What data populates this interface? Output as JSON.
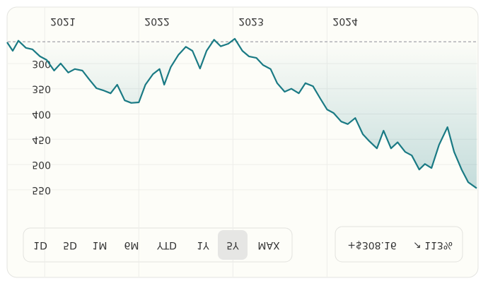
{
  "chart_data": {
    "type": "line",
    "xlim": [
      2020.6,
      2025.59
    ],
    "xticks": [
      2021,
      2022,
      2023,
      2024
    ],
    "ylim": [
      240,
      560
    ],
    "yticks": [
      300,
      350,
      400,
      450,
      500,
      550
    ],
    "grid": true,
    "reference_value": 257,
    "x": [
      2020.6,
      2020.66,
      2020.72,
      2020.8,
      2020.87,
      2020.95,
      2021.02,
      2021.1,
      2021.17,
      2021.25,
      2021.32,
      2021.4,
      2021.47,
      2021.55,
      2021.62,
      2021.7,
      2021.77,
      2021.85,
      2021.92,
      2022.0,
      2022.07,
      2022.15,
      2022.22,
      2022.27,
      2022.34,
      2022.42,
      2022.5,
      2022.57,
      2022.65,
      2022.72,
      2022.8,
      2022.87,
      2022.95,
      2023.02,
      2023.1,
      2023.17,
      2023.25,
      2023.32,
      2023.4,
      2023.47,
      2023.55,
      2023.62,
      2023.7,
      2023.77,
      2023.85,
      2023.93,
      2024.0,
      2024.07,
      2024.15,
      2024.22,
      2024.3,
      2024.38,
      2024.45,
      2024.53,
      2024.6,
      2024.68,
      2024.75,
      2024.83,
      2024.9,
      2024.98,
      2025.04,
      2025.11,
      2025.19,
      2025.28,
      2025.35,
      2025.43,
      2025.5,
      2025.59
    ],
    "series": [
      {
        "color": "#1a7a84",
        "values": [
          258,
          275,
          255,
          269,
          272,
          286,
          293,
          314,
          300,
          318,
          311,
          314,
          331,
          349,
          353,
          359,
          342,
          373,
          378,
          377,
          342,
          321,
          311,
          342,
          307,
          283,
          267,
          275,
          310,
          275,
          253,
          266,
          261,
          251,
          275,
          286,
          289,
          303,
          311,
          339,
          356,
          350,
          359,
          339,
          345,
          370,
          391,
          398,
          415,
          420,
          408,
          440,
          454,
          468,
          433,
          468,
          456,
          475,
          482,
          510,
          499,
          507,
          461,
          426,
          475,
          510,
          535,
          547
        ]
      }
    ]
  },
  "controls": {
    "ranges": [
      "1D",
      "5D",
      "1M",
      "6M",
      "YTD",
      "1Y",
      "5Y",
      "MAX"
    ],
    "change": "+$308.16",
    "change_pct": "↗ 113%"
  }
}
